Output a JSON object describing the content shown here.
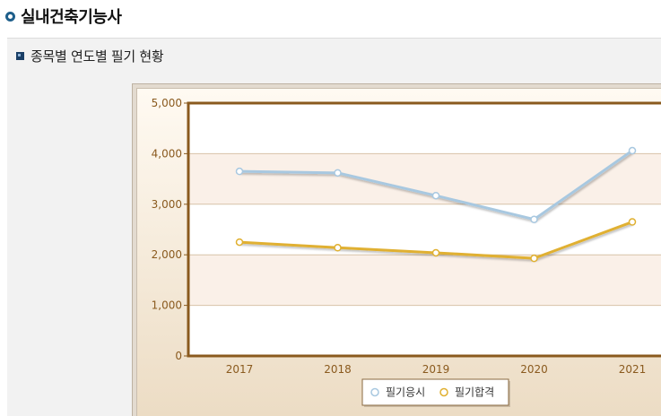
{
  "page_title": "실내건축기능사",
  "section_title": "종목별 연도별 필기 현황",
  "colors": {
    "series1": "#a8c8e0",
    "series2": "#e0b030",
    "axis_text": "#8a5a1e",
    "plot_border": "#8a5a1e",
    "band": "#faf0e8"
  },
  "icons": {
    "title_bullet": "ring-bullet-icon",
    "section_bullet": "square-bullet-icon"
  },
  "chart_data": {
    "type": "line",
    "categories": [
      "2017",
      "2018",
      "2019",
      "2020",
      "2021"
    ],
    "series": [
      {
        "name": "필기응시",
        "values": [
          3650,
          3620,
          3170,
          2700,
          4060
        ]
      },
      {
        "name": "필기합격",
        "values": [
          2250,
          2140,
          2040,
          1930,
          2650
        ]
      }
    ],
    "y_ticks": [
      "0",
      "1,000",
      "2,000",
      "3,000",
      "4,000",
      "5,000"
    ],
    "ylim": [
      0,
      5000
    ],
    "grid": true,
    "legend_position": "bottom-center",
    "title": "",
    "xlabel": "",
    "ylabel": ""
  }
}
